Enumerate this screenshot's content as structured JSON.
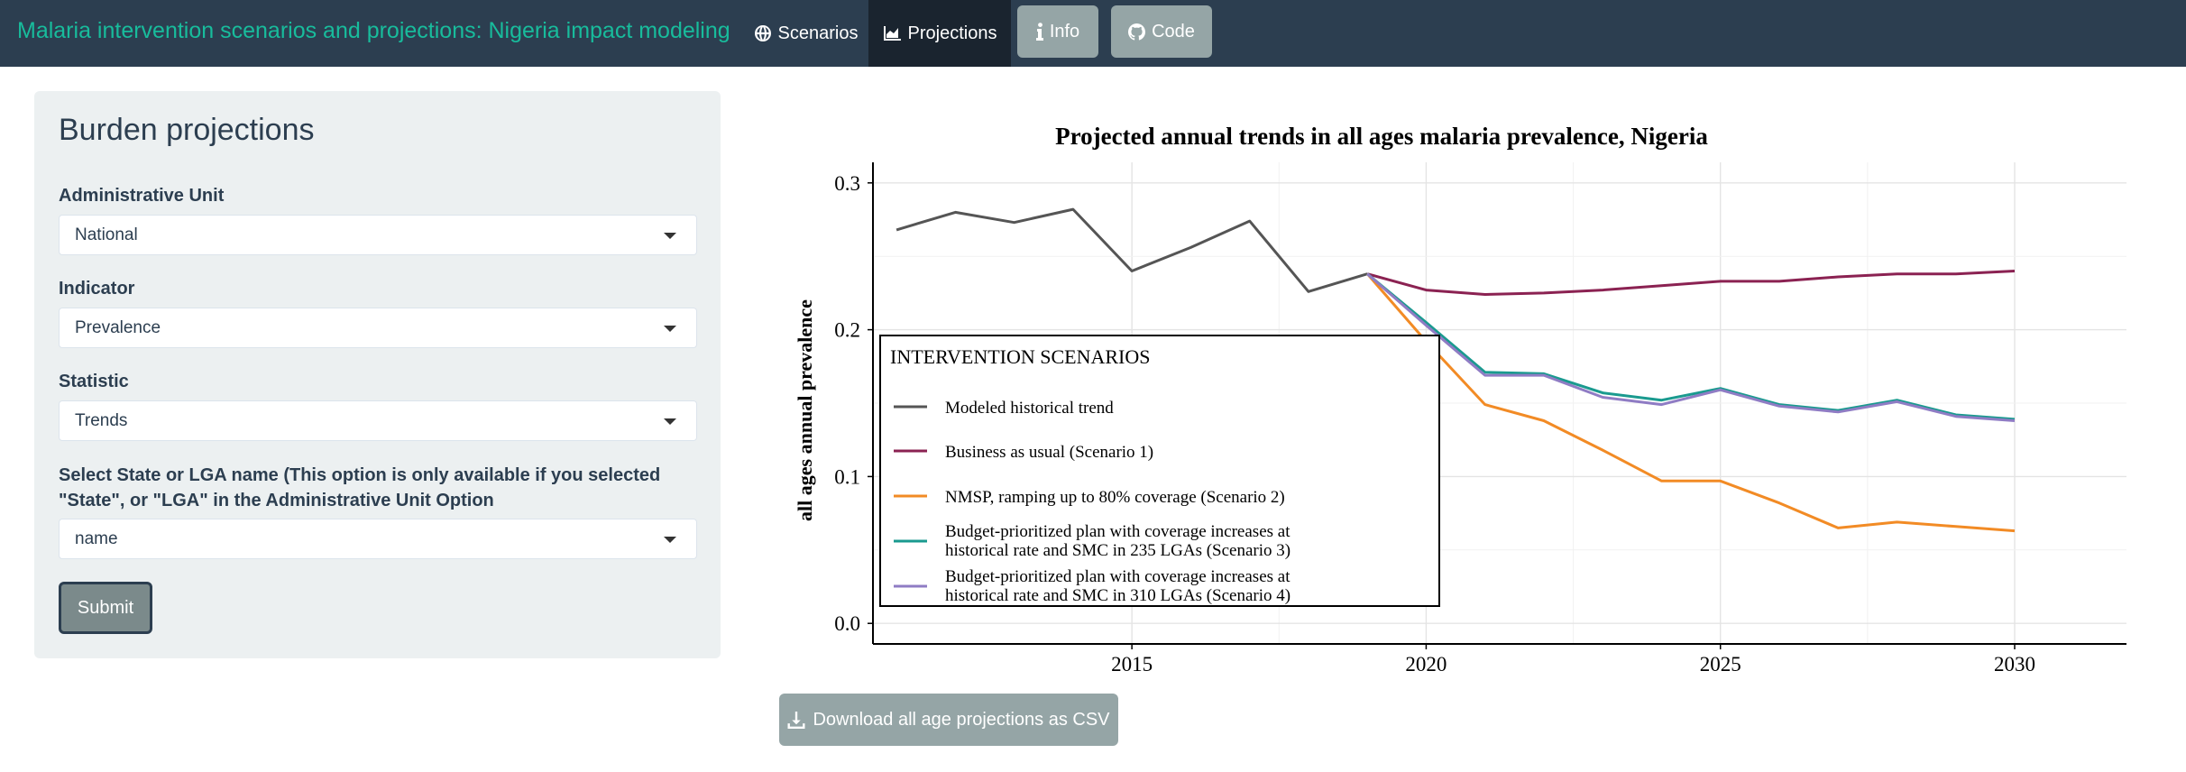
{
  "navbar": {
    "brand": "Malaria intervention scenarios and projections: Nigeria impact modeling",
    "tabs": [
      {
        "label": "Scenarios",
        "icon": "globe-icon",
        "active": false
      },
      {
        "label": "Projections",
        "icon": "area-chart-icon",
        "active": true
      }
    ],
    "buttons": [
      {
        "label": "Info",
        "icon": "info-icon"
      },
      {
        "label": "Code",
        "icon": "github-icon"
      }
    ]
  },
  "sidebar": {
    "title": "Burden projections",
    "fields": [
      {
        "label": "Administrative Unit",
        "value": "National"
      },
      {
        "label": "Indicator",
        "value": "Prevalence"
      },
      {
        "label": "Statistic",
        "value": "Trends"
      },
      {
        "label": "Select State or LGA name (This option is only available if you selected \"State\", or \"LGA\" in the Administrative Unit Option",
        "value": "name"
      }
    ],
    "submit_label": "Submit"
  },
  "download": {
    "label": "Download all age projections as CSV",
    "icon": "download-icon"
  },
  "colors": {
    "navbar": "#2c3e50",
    "brand": "#18bc9c",
    "active_tab": "#1a242f",
    "button": "#95a5a6",
    "sidebar": "#ecf0f1"
  },
  "chart_data": {
    "type": "line",
    "title": "Projected annual trends in all ages malaria prevalence, Nigeria",
    "xlabel": "",
    "ylabel": "all ages annual prevalence",
    "xlim": [
      2010.6,
      2031.9
    ],
    "ylim": [
      -0.014,
      0.314
    ],
    "xticks": [
      2015,
      2020,
      2025,
      2030
    ],
    "xtick_labels": [
      "2015",
      "2020",
      "2025",
      "2030"
    ],
    "yticks": [
      0.0,
      0.1,
      0.2,
      0.3
    ],
    "ytick_labels": [
      "0.0",
      "0.1",
      "0.2",
      "0.3"
    ],
    "grid": true,
    "legend": {
      "title": "INTERVENTION SCENARIOS",
      "position": "inside-bottom-left"
    },
    "series": [
      {
        "name": "Modeled historical trend",
        "color": "#555555",
        "x": [
          2011,
          2012,
          2013,
          2014,
          2015,
          2016,
          2017,
          2018,
          2019
        ],
        "y": [
          0.268,
          0.28,
          0.273,
          0.282,
          0.24,
          0.256,
          0.274,
          0.226,
          0.238
        ]
      },
      {
        "name": "Business as usual (Scenario 1)",
        "color": "#8b2252",
        "x": [
          2019,
          2020,
          2021,
          2022,
          2023,
          2024,
          2025,
          2026,
          2027,
          2028,
          2029,
          2030
        ],
        "y": [
          0.238,
          0.227,
          0.224,
          0.225,
          0.227,
          0.23,
          0.233,
          0.233,
          0.236,
          0.238,
          0.238,
          0.24
        ]
      },
      {
        "name": "NMSP, ramping up to 80% coverage (Scenario 2)",
        "color": "#f28b25",
        "x": [
          2019,
          2020,
          2021,
          2022,
          2023,
          2024,
          2025,
          2026,
          2027,
          2028,
          2029,
          2030
        ],
        "y": [
          0.238,
          0.192,
          0.149,
          0.138,
          0.118,
          0.097,
          0.097,
          0.082,
          0.065,
          0.069,
          0.066,
          0.063
        ]
      },
      {
        "name": "Budget-prioritized plan with coverage increases at historical rate and SMC in 235 LGAs (Scenario 3)",
        "label_lines": [
          "Budget-prioritized plan with coverage increases at",
          "historical rate and SMC in 235 LGAs (Scenario 3)"
        ],
        "color": "#1a9a8f",
        "x": [
          2019,
          2020,
          2021,
          2022,
          2023,
          2024,
          2025,
          2026,
          2027,
          2028,
          2029,
          2030
        ],
        "y": [
          0.238,
          0.205,
          0.171,
          0.17,
          0.157,
          0.152,
          0.16,
          0.149,
          0.145,
          0.152,
          0.142,
          0.139
        ]
      },
      {
        "name": "Budget-prioritized plan with coverage increases at historical rate and SMC in 310 LGAs (Scenario 4)",
        "label_lines": [
          "Budget-prioritized plan with coverage increases at",
          "historical rate and SMC in 310 LGAs (Scenario 4)"
        ],
        "color": "#8f7cc4",
        "x": [
          2019,
          2020,
          2021,
          2022,
          2023,
          2024,
          2025,
          2026,
          2027,
          2028,
          2029,
          2030
        ],
        "y": [
          0.238,
          0.203,
          0.169,
          0.169,
          0.154,
          0.149,
          0.159,
          0.148,
          0.144,
          0.151,
          0.141,
          0.138
        ]
      }
    ]
  }
}
